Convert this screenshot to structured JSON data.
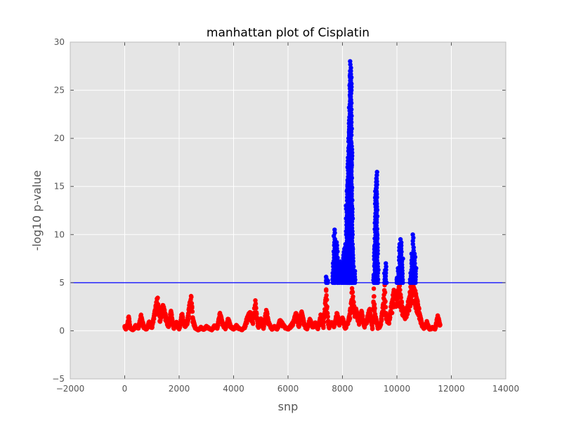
{
  "chart_data": {
    "type": "scatter",
    "title": "manhattan plot of Cisplatin",
    "xlabel": "snp",
    "ylabel": "-log10 p-value",
    "xlim": [
      -2000,
      14000
    ],
    "ylim": [
      -5,
      30
    ],
    "x_ticks": [
      -2000,
      0,
      2000,
      4000,
      6000,
      8000,
      10000,
      12000,
      14000
    ],
    "y_ticks": [
      -5,
      0,
      5,
      10,
      15,
      20,
      25,
      30
    ],
    "x_tick_labels": [
      "−2000",
      "0",
      "2000",
      "4000",
      "6000",
      "8000",
      "10000",
      "12000",
      "14000"
    ],
    "y_tick_labels": [
      "−5",
      "0",
      "5",
      "10",
      "15",
      "20",
      "25",
      "30"
    ],
    "grid": true,
    "background": "#e5e5e5",
    "threshold": {
      "value": 5,
      "color": "#0000ff"
    },
    "series": [
      {
        "color": "#ff0000",
        "segments": [
          [
            0,
            0.5
          ],
          [
            50,
            0.2
          ],
          [
            100,
            0.8
          ],
          [
            150,
            1.6
          ],
          [
            200,
            0.4
          ],
          [
            300,
            0.1
          ],
          [
            400,
            0.6
          ],
          [
            500,
            0.3
          ],
          [
            600,
            1.7
          ],
          [
            700,
            0.5
          ],
          [
            800,
            0.2
          ],
          [
            900,
            1.0
          ],
          [
            1000,
            0.4
          ],
          [
            1100,
            2.0
          ],
          [
            1200,
            3.7
          ],
          [
            1300,
            1.5
          ],
          [
            1400,
            3.0
          ],
          [
            1500,
            1.8
          ],
          [
            1600,
            0.5
          ],
          [
            1700,
            2.2
          ],
          [
            1800,
            0.3
          ],
          [
            1900,
            1.0
          ],
          [
            2000,
            0.2
          ],
          [
            2100,
            1.9
          ],
          [
            2200,
            0.6
          ],
          [
            2300,
            1.2
          ],
          [
            2400,
            3.3
          ],
          [
            2450,
            3.8
          ],
          [
            2500,
            1.5
          ],
          [
            2600,
            0.3
          ],
          [
            2700,
            0.1
          ],
          [
            2800,
            0.4
          ],
          [
            2900,
            0.2
          ],
          [
            3000,
            0.5
          ],
          [
            3100,
            0.3
          ],
          [
            3200,
            0.1
          ],
          [
            3300,
            0.6
          ],
          [
            3400,
            0.4
          ],
          [
            3500,
            2.0
          ],
          [
            3600,
            0.8
          ],
          [
            3700,
            0.3
          ],
          [
            3800,
            1.4
          ],
          [
            3900,
            0.5
          ],
          [
            4000,
            0.2
          ],
          [
            4100,
            0.6
          ],
          [
            4200,
            0.3
          ],
          [
            4300,
            0.1
          ],
          [
            4400,
            0.4
          ],
          [
            4500,
            1.5
          ],
          [
            4600,
            2.2
          ],
          [
            4700,
            1.0
          ],
          [
            4800,
            3.2
          ],
          [
            4900,
            0.5
          ],
          [
            5000,
            1.3
          ],
          [
            5100,
            0.3
          ],
          [
            5200,
            2.3
          ],
          [
            5300,
            0.9
          ],
          [
            5400,
            0.2
          ],
          [
            5500,
            0.5
          ],
          [
            5600,
            0.2
          ],
          [
            5700,
            1.2
          ],
          [
            5800,
            0.8
          ],
          [
            5900,
            0.4
          ],
          [
            6000,
            0.2
          ],
          [
            6100,
            0.6
          ],
          [
            6200,
            1.0
          ],
          [
            6300,
            2.1
          ],
          [
            6400,
            0.5
          ],
          [
            6500,
            2.2
          ],
          [
            6600,
            0.7
          ],
          [
            6700,
            0.2
          ],
          [
            6800,
            1.3
          ],
          [
            6900,
            0.6
          ],
          [
            7000,
            0.9
          ],
          [
            7100,
            0.3
          ],
          [
            7200,
            1.7
          ],
          [
            7300,
            0.5
          ],
          [
            7400,
            4.5
          ],
          [
            7450,
            2.0
          ],
          [
            7500,
            0.4
          ],
          [
            7600,
            1.0
          ],
          [
            7700,
            0.6
          ],
          [
            7800,
            2.0
          ],
          [
            7900,
            0.8
          ],
          [
            8000,
            1.5
          ],
          [
            8100,
            0.3
          ],
          [
            8200,
            1.0
          ],
          [
            8300,
            2.5
          ],
          [
            8350,
            4.6
          ],
          [
            8400,
            3.5
          ],
          [
            8450,
            2.0
          ],
          [
            8500,
            2.6
          ],
          [
            8600,
            1.0
          ],
          [
            8700,
            2.2
          ],
          [
            8800,
            0.5
          ],
          [
            8900,
            1.3
          ],
          [
            9000,
            2.5
          ],
          [
            9100,
            0.3
          ],
          [
            9150,
            4.6
          ],
          [
            9200,
            1.8
          ],
          [
            9300,
            0.4
          ],
          [
            9400,
            0.7
          ],
          [
            9500,
            3.0
          ],
          [
            9550,
            4.8
          ],
          [
            9600,
            2.0
          ],
          [
            9700,
            1.0
          ],
          [
            9800,
            3.0
          ],
          [
            9900,
            4.5
          ],
          [
            10000,
            3.8
          ],
          [
            10100,
            4.9
          ],
          [
            10200,
            2.6
          ],
          [
            10300,
            1.8
          ],
          [
            10400,
            3.0
          ],
          [
            10500,
            4.6
          ],
          [
            10600,
            4.8
          ],
          [
            10700,
            4.0
          ],
          [
            10800,
            2.6
          ],
          [
            10900,
            1.0
          ],
          [
            11000,
            0.3
          ],
          [
            11100,
            1.0
          ],
          [
            11200,
            0.2
          ],
          [
            11300,
            0.4
          ],
          [
            11400,
            0.2
          ],
          [
            11500,
            1.7
          ],
          [
            11600,
            0.5
          ]
        ]
      },
      {
        "color": "#0000ff",
        "peaks": [
          [
            7400,
            5.6
          ],
          [
            7450,
            5.2
          ],
          [
            7650,
            7.0
          ],
          [
            7700,
            10.5
          ],
          [
            7720,
            9.5
          ],
          [
            7750,
            8.0
          ],
          [
            7800,
            9.2
          ],
          [
            7850,
            6.8
          ],
          [
            7900,
            7.2
          ],
          [
            7950,
            6.5
          ],
          [
            8000,
            7.0
          ],
          [
            8050,
            8.5
          ],
          [
            8100,
            9.0
          ],
          [
            8150,
            13.0
          ],
          [
            8180,
            15.5
          ],
          [
            8200,
            18.0
          ],
          [
            8220,
            19.0
          ],
          [
            8240,
            21.0
          ],
          [
            8260,
            23.2
          ],
          [
            8280,
            25.5
          ],
          [
            8290,
            26.5
          ],
          [
            8300,
            28.0
          ],
          [
            8320,
            27.0
          ],
          [
            8340,
            19.5
          ],
          [
            8360,
            13.0
          ],
          [
            8380,
            8.5
          ],
          [
            8400,
            7.0
          ],
          [
            8450,
            6.2
          ],
          [
            9150,
            5.8
          ],
          [
            9180,
            8.8
          ],
          [
            9200,
            12.2
          ],
          [
            9220,
            14.5
          ],
          [
            9240,
            15.8
          ],
          [
            9260,
            16.5
          ],
          [
            9280,
            10.0
          ],
          [
            9300,
            7.0
          ],
          [
            9550,
            6.3
          ],
          [
            9600,
            7.0
          ],
          [
            10000,
            5.5
          ],
          [
            10050,
            6.5
          ],
          [
            10100,
            9.0
          ],
          [
            10150,
            9.5
          ],
          [
            10200,
            7.5
          ],
          [
            10500,
            6.0
          ],
          [
            10550,
            8.0
          ],
          [
            10600,
            10.0
          ],
          [
            10650,
            8.0
          ],
          [
            10700,
            6.5
          ]
        ]
      }
    ]
  }
}
